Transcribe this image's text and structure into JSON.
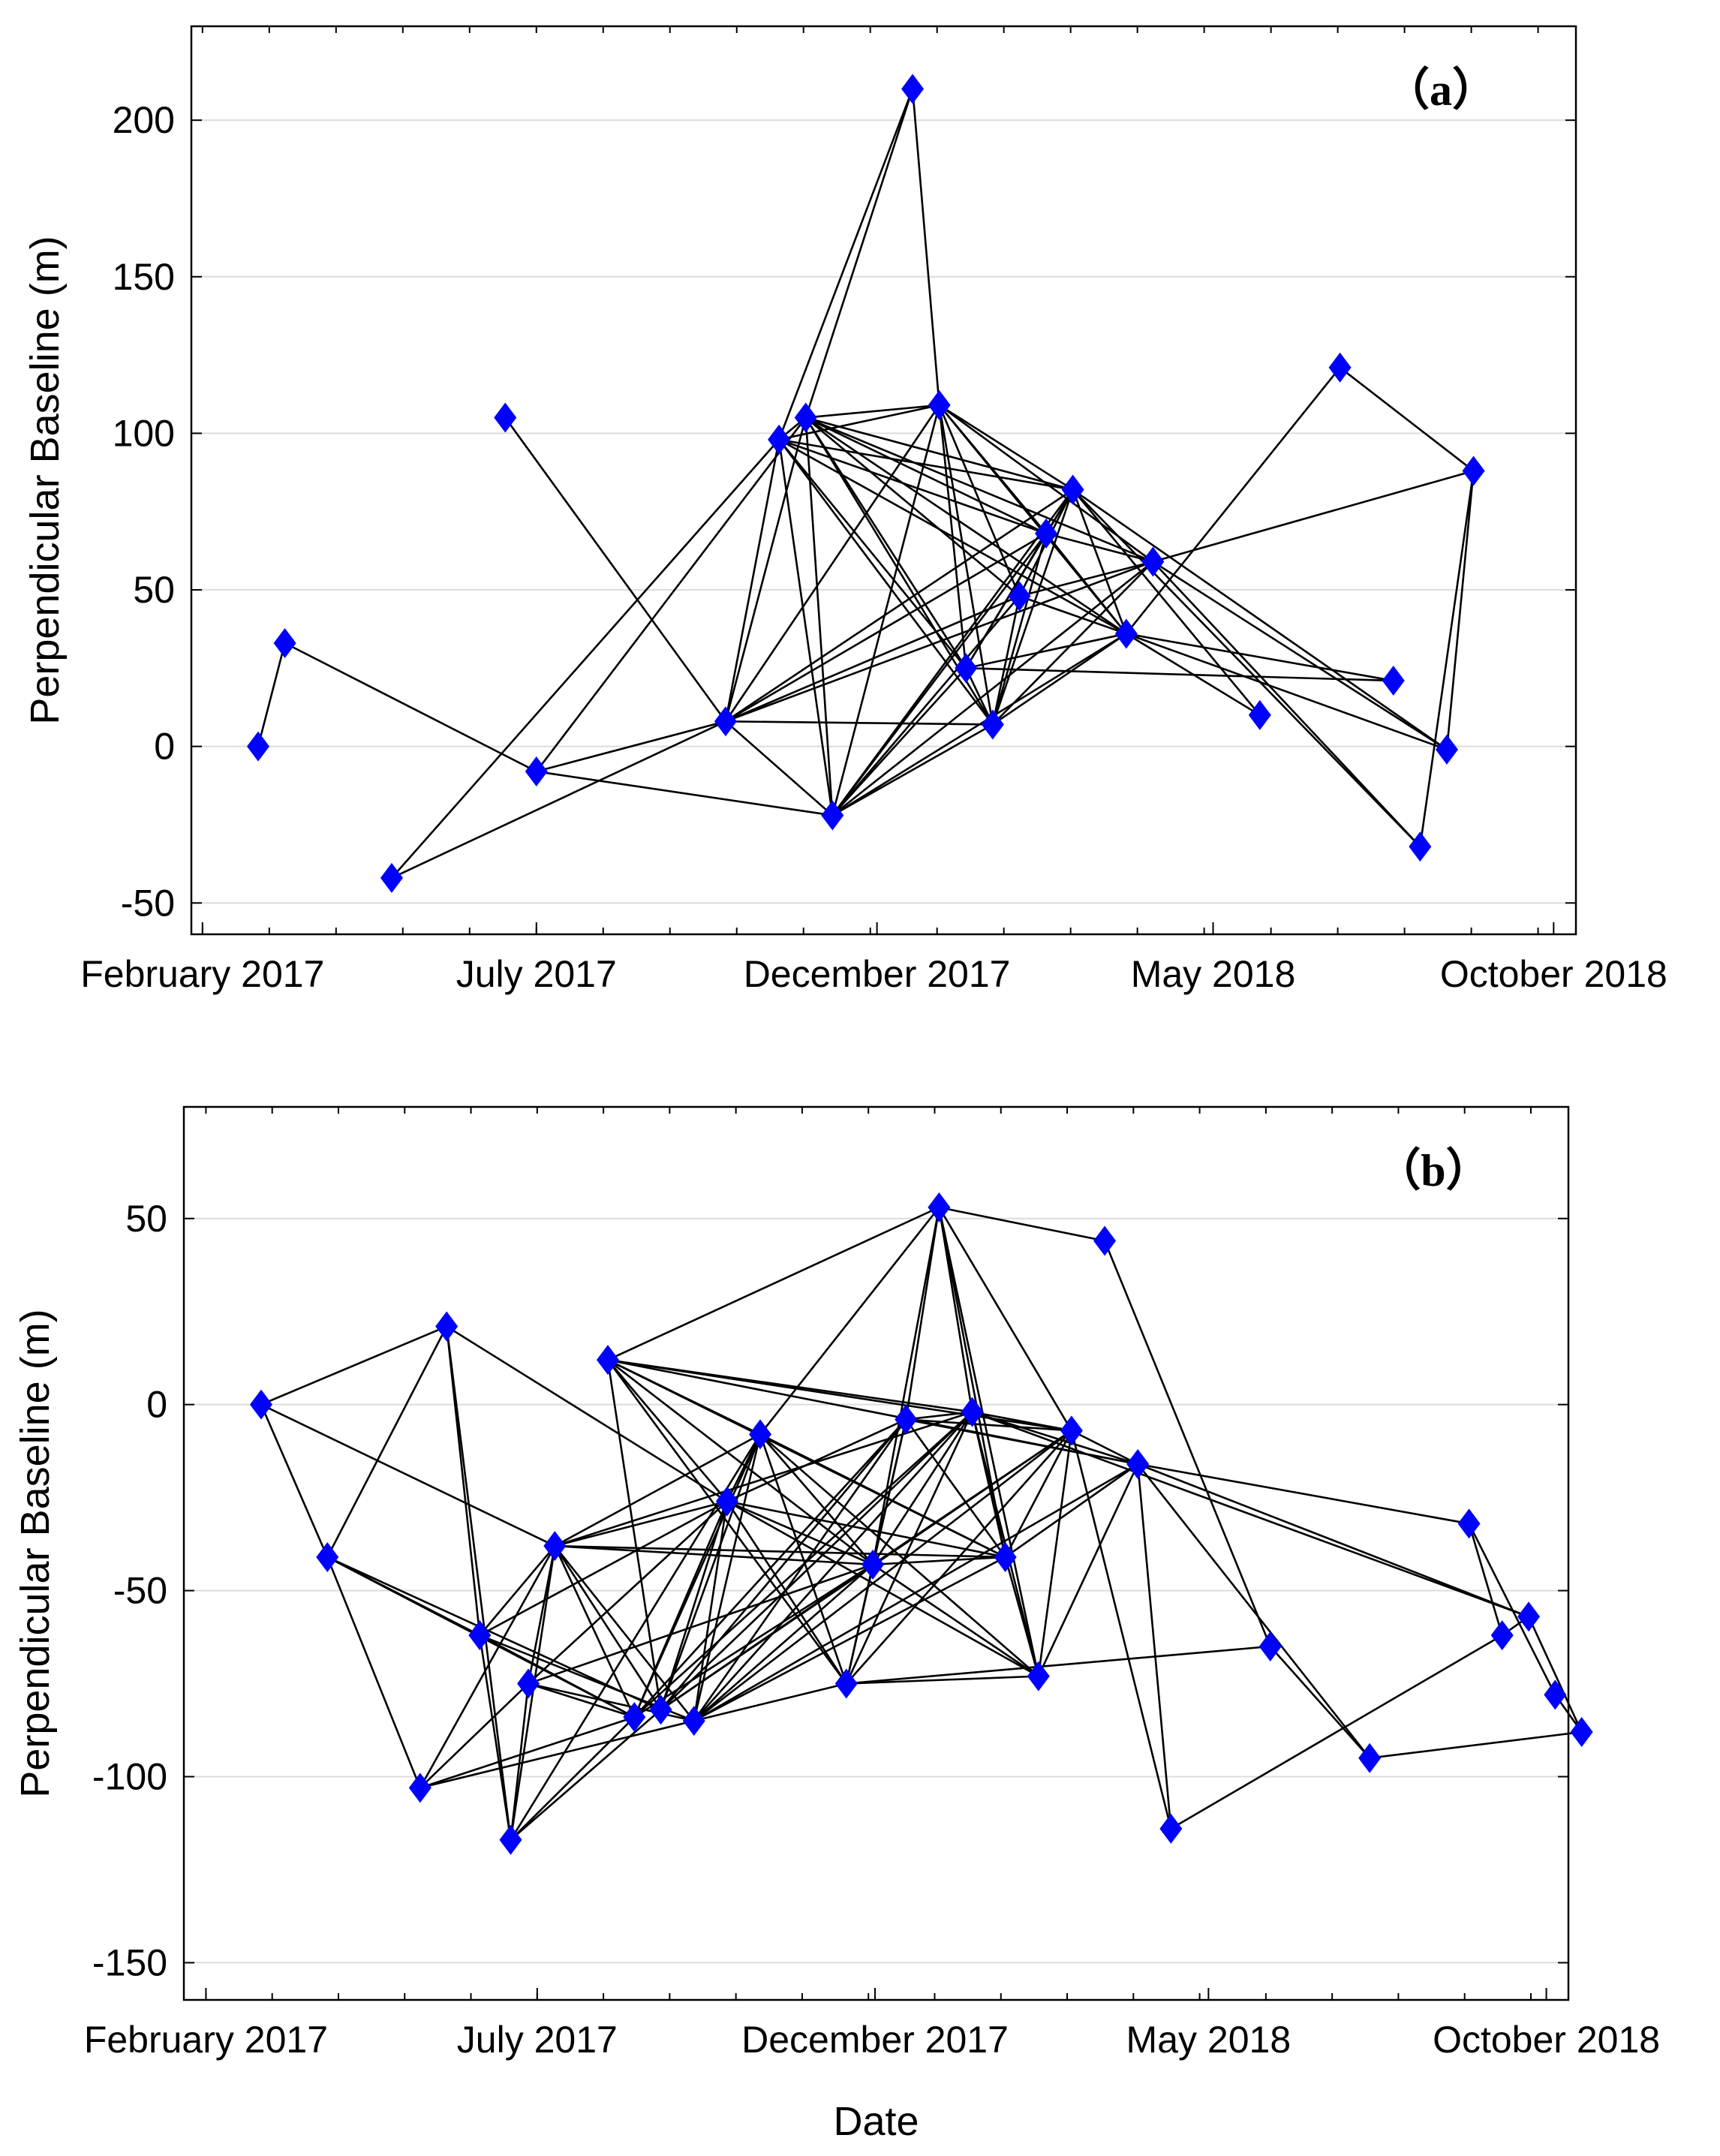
{
  "chart_data": [
    {
      "type": "scatter",
      "panel_label": "（a）",
      "ylabel": "Perpendicular Baseline (m)",
      "xlabel": "",
      "ylim": [
        -60,
        230
      ],
      "yticks": [
        -50,
        0,
        50,
        100,
        150,
        200
      ],
      "xlim_days": [
        -5,
        617
      ],
      "xticks": [
        {
          "day": 0,
          "label": "February 2017"
        },
        {
          "day": 150,
          "label": "July 2017"
        },
        {
          "day": 303,
          "label": "December 2017"
        },
        {
          "day": 454,
          "label": "May 2018"
        },
        {
          "day": 607,
          "label": "October 2018"
        }
      ],
      "grid": true,
      "marker_color": "#0000ff",
      "line_color": "#000000",
      "nodes": [
        {
          "id": "A1",
          "day": 25,
          "y": 0
        },
        {
          "id": "A2",
          "day": 37,
          "y": 33
        },
        {
          "id": "A3",
          "day": 85,
          "y": -42
        },
        {
          "id": "A4",
          "day": 136,
          "y": 105
        },
        {
          "id": "A5",
          "day": 150,
          "y": -8
        },
        {
          "id": "A6",
          "day": 235,
          "y": 8
        },
        {
          "id": "A7",
          "day": 259,
          "y": 98
        },
        {
          "id": "A8",
          "day": 271,
          "y": 105
        },
        {
          "id": "A9",
          "day": 283,
          "y": -22
        },
        {
          "id": "A10",
          "day": 319,
          "y": 210
        },
        {
          "id": "A11",
          "day": 331,
          "y": 109
        },
        {
          "id": "A12",
          "day": 343,
          "y": 25
        },
        {
          "id": "A13",
          "day": 355,
          "y": 7
        },
        {
          "id": "A14",
          "day": 367,
          "y": 48
        },
        {
          "id": "A15",
          "day": 379,
          "y": 68
        },
        {
          "id": "A16",
          "day": 391,
          "y": 82
        },
        {
          "id": "A17",
          "day": 415,
          "y": 36
        },
        {
          "id": "A18",
          "day": 427,
          "y": 59
        },
        {
          "id": "A19",
          "day": 475,
          "y": 10
        },
        {
          "id": "A20",
          "day": 511,
          "y": 121
        },
        {
          "id": "A21",
          "day": 535,
          "y": 21
        },
        {
          "id": "A22",
          "day": 559,
          "y": -1
        },
        {
          "id": "A23",
          "day": 547,
          "y": -32
        },
        {
          "id": "A24",
          "day": 571,
          "y": 88
        }
      ],
      "edges": [
        [
          "A1",
          "A2"
        ],
        [
          "A2",
          "A5"
        ],
        [
          "A4",
          "A6"
        ],
        [
          "A3",
          "A6"
        ],
        [
          "A3",
          "A7"
        ],
        [
          "A5",
          "A8"
        ],
        [
          "A5",
          "A6"
        ],
        [
          "A5",
          "A9"
        ],
        [
          "A6",
          "A7"
        ],
        [
          "A6",
          "A8"
        ],
        [
          "A6",
          "A9"
        ],
        [
          "A6",
          "A11"
        ],
        [
          "A6",
          "A13"
        ],
        [
          "A6",
          "A14"
        ],
        [
          "A6",
          "A15"
        ],
        [
          "A6",
          "A16"
        ],
        [
          "A6",
          "A18"
        ],
        [
          "A7",
          "A8"
        ],
        [
          "A7",
          "A10"
        ],
        [
          "A7",
          "A11"
        ],
        [
          "A7",
          "A12"
        ],
        [
          "A7",
          "A13"
        ],
        [
          "A7",
          "A15"
        ],
        [
          "A7",
          "A16"
        ],
        [
          "A7",
          "A17"
        ],
        [
          "A7",
          "A9"
        ],
        [
          "A8",
          "A10"
        ],
        [
          "A8",
          "A11"
        ],
        [
          "A8",
          "A12"
        ],
        [
          "A8",
          "A13"
        ],
        [
          "A8",
          "A14"
        ],
        [
          "A8",
          "A15"
        ],
        [
          "A8",
          "A16"
        ],
        [
          "A8",
          "A17"
        ],
        [
          "A8",
          "A18"
        ],
        [
          "A8",
          "A9"
        ],
        [
          "A9",
          "A11"
        ],
        [
          "A9",
          "A12"
        ],
        [
          "A9",
          "A13"
        ],
        [
          "A9",
          "A14"
        ],
        [
          "A9",
          "A15"
        ],
        [
          "A9",
          "A16"
        ],
        [
          "A9",
          "A17"
        ],
        [
          "A9",
          "A18"
        ],
        [
          "A10",
          "A11"
        ],
        [
          "A11",
          "A12"
        ],
        [
          "A11",
          "A13"
        ],
        [
          "A11",
          "A14"
        ],
        [
          "A11",
          "A15"
        ],
        [
          "A11",
          "A16"
        ],
        [
          "A11",
          "A17"
        ],
        [
          "A11",
          "A18"
        ],
        [
          "A12",
          "A13"
        ],
        [
          "A12",
          "A15"
        ],
        [
          "A12",
          "A16"
        ],
        [
          "A12",
          "A17"
        ],
        [
          "A12",
          "A21"
        ],
        [
          "A13",
          "A14"
        ],
        [
          "A13",
          "A15"
        ],
        [
          "A13",
          "A16"
        ],
        [
          "A13",
          "A17"
        ],
        [
          "A13",
          "A18"
        ],
        [
          "A14",
          "A16"
        ],
        [
          "A14",
          "A17"
        ],
        [
          "A14",
          "A18"
        ],
        [
          "A15",
          "A16"
        ],
        [
          "A15",
          "A17"
        ],
        [
          "A15",
          "A18"
        ],
        [
          "A16",
          "A17"
        ],
        [
          "A16",
          "A19"
        ],
        [
          "A16",
          "A22"
        ],
        [
          "A16",
          "A23"
        ],
        [
          "A17",
          "A19"
        ],
        [
          "A17",
          "A21"
        ],
        [
          "A17",
          "A20"
        ],
        [
          "A17",
          "A22"
        ],
        [
          "A18",
          "A22"
        ],
        [
          "A18",
          "A23"
        ],
        [
          "A18",
          "A24"
        ],
        [
          "A20",
          "A24"
        ],
        [
          "A24",
          "A23"
        ],
        [
          "A24",
          "A22"
        ]
      ]
    },
    {
      "type": "scatter",
      "panel_label": "（b）",
      "ylabel": "Perpendicular Baseline (m)",
      "xlabel": "Date",
      "ylim": [
        -160,
        80
      ],
      "yticks": [
        -150,
        -100,
        -50,
        0,
        50
      ],
      "xlim_days": [
        -10,
        617
      ],
      "xticks": [
        {
          "day": 0,
          "label": "February 2017"
        },
        {
          "day": 150,
          "label": "July 2017"
        },
        {
          "day": 303,
          "label": "December 2017"
        },
        {
          "day": 454,
          "label": "May 2018"
        },
        {
          "day": 607,
          "label": "October 2018"
        }
      ],
      "grid": true,
      "marker_color": "#0000ff",
      "line_color": "#000000",
      "nodes": [
        {
          "id": "B1",
          "day": 25,
          "y": 0
        },
        {
          "id": "B2",
          "day": 55,
          "y": -41
        },
        {
          "id": "B3",
          "day": 97,
          "y": -103
        },
        {
          "id": "B4",
          "day": 109,
          "y": 21
        },
        {
          "id": "B5",
          "day": 124,
          "y": -62
        },
        {
          "id": "B6",
          "day": 138,
          "y": -117
        },
        {
          "id": "B7",
          "day": 146,
          "y": -75
        },
        {
          "id": "B8",
          "day": 158,
          "y": -38
        },
        {
          "id": "B9",
          "day": 182,
          "y": 12
        },
        {
          "id": "B10",
          "day": 194,
          "y": -84
        },
        {
          "id": "B11",
          "day": 206,
          "y": -82
        },
        {
          "id": "B12",
          "day": 221,
          "y": -85
        },
        {
          "id": "B13",
          "day": 236,
          "y": -26
        },
        {
          "id": "B14",
          "day": 251,
          "y": -8
        },
        {
          "id": "B15",
          "day": 290,
          "y": -75
        },
        {
          "id": "B16",
          "day": 302,
          "y": -43
        },
        {
          "id": "B17",
          "day": 317,
          "y": -4
        },
        {
          "id": "B18",
          "day": 332,
          "y": 53
        },
        {
          "id": "B19",
          "day": 347,
          "y": -2
        },
        {
          "id": "B20",
          "day": 362,
          "y": -41
        },
        {
          "id": "B21",
          "day": 377,
          "y": -73
        },
        {
          "id": "B22",
          "day": 392,
          "y": -7
        },
        {
          "id": "B23",
          "day": 407,
          "y": 44
        },
        {
          "id": "B24",
          "day": 422,
          "y": -16
        },
        {
          "id": "B25",
          "day": 437,
          "y": -114
        },
        {
          "id": "B26",
          "day": 482,
          "y": -65
        },
        {
          "id": "B27",
          "day": 527,
          "y": -95
        },
        {
          "id": "B28",
          "day": 572,
          "y": -32
        },
        {
          "id": "B29",
          "day": 587,
          "y": -62
        },
        {
          "id": "B30",
          "day": 599,
          "y": -57
        },
        {
          "id": "B31",
          "day": 611,
          "y": -78
        },
        {
          "id": "B32",
          "day": 623,
          "y": -88
        }
      ],
      "edges": [
        [
          "B1",
          "B2"
        ],
        [
          "B1",
          "B4"
        ],
        [
          "B1",
          "B8"
        ],
        [
          "B2",
          "B4"
        ],
        [
          "B2",
          "B5"
        ],
        [
          "B2",
          "B3"
        ],
        [
          "B2",
          "B10"
        ],
        [
          "B2",
          "B11"
        ],
        [
          "B3",
          "B7"
        ],
        [
          "B3",
          "B8"
        ],
        [
          "B3",
          "B10"
        ],
        [
          "B3",
          "B12"
        ],
        [
          "B4",
          "B6"
        ],
        [
          "B4",
          "B5"
        ],
        [
          "B4",
          "B13"
        ],
        [
          "B5",
          "B6"
        ],
        [
          "B5",
          "B8"
        ],
        [
          "B5",
          "B10"
        ],
        [
          "B5",
          "B12"
        ],
        [
          "B5",
          "B13"
        ],
        [
          "B6",
          "B7"
        ],
        [
          "B6",
          "B8"
        ],
        [
          "B6",
          "B10"
        ],
        [
          "B6",
          "B11"
        ],
        [
          "B6",
          "B14"
        ],
        [
          "B7",
          "B8"
        ],
        [
          "B7",
          "B10"
        ],
        [
          "B7",
          "B12"
        ],
        [
          "B7",
          "B13"
        ],
        [
          "B7",
          "B16"
        ],
        [
          "B8",
          "B10"
        ],
        [
          "B8",
          "B11"
        ],
        [
          "B8",
          "B12"
        ],
        [
          "B8",
          "B13"
        ],
        [
          "B8",
          "B14"
        ],
        [
          "B8",
          "B16"
        ],
        [
          "B8",
          "B19"
        ],
        [
          "B8",
          "B20"
        ],
        [
          "B9",
          "B11"
        ],
        [
          "B9",
          "B13"
        ],
        [
          "B9",
          "B14"
        ],
        [
          "B9",
          "B15"
        ],
        [
          "B9",
          "B16"
        ],
        [
          "B9",
          "B18"
        ],
        [
          "B9",
          "B19"
        ],
        [
          "B9",
          "B20"
        ],
        [
          "B9",
          "B22"
        ],
        [
          "B9",
          "B24"
        ],
        [
          "B10",
          "B13"
        ],
        [
          "B10",
          "B14"
        ],
        [
          "B10",
          "B16"
        ],
        [
          "B10",
          "B17"
        ],
        [
          "B10",
          "B19"
        ],
        [
          "B11",
          "B13"
        ],
        [
          "B11",
          "B14"
        ],
        [
          "B11",
          "B16"
        ],
        [
          "B11",
          "B17"
        ],
        [
          "B11",
          "B19"
        ],
        [
          "B11",
          "B22"
        ],
        [
          "B12",
          "B13"
        ],
        [
          "B12",
          "B14"
        ],
        [
          "B12",
          "B15"
        ],
        [
          "B12",
          "B16"
        ],
        [
          "B12",
          "B17"
        ],
        [
          "B12",
          "B19"
        ],
        [
          "B12",
          "B20"
        ],
        [
          "B12",
          "B22"
        ],
        [
          "B12",
          "B24"
        ],
        [
          "B13",
          "B15"
        ],
        [
          "B13",
          "B16"
        ],
        [
          "B13",
          "B17"
        ],
        [
          "B13",
          "B20"
        ],
        [
          "B13",
          "B21"
        ],
        [
          "B13",
          "B14"
        ],
        [
          "B14",
          "B15"
        ],
        [
          "B14",
          "B16"
        ],
        [
          "B14",
          "B18"
        ],
        [
          "B14",
          "B20"
        ],
        [
          "B14",
          "B21"
        ],
        [
          "B15",
          "B16"
        ],
        [
          "B15",
          "B17"
        ],
        [
          "B15",
          "B19"
        ],
        [
          "B15",
          "B21"
        ],
        [
          "B15",
          "B22"
        ],
        [
          "B15",
          "B26"
        ],
        [
          "B16",
          "B17"
        ],
        [
          "B16",
          "B18"
        ],
        [
          "B16",
          "B19"
        ],
        [
          "B16",
          "B20"
        ],
        [
          "B16",
          "B21"
        ],
        [
          "B16",
          "B22"
        ],
        [
          "B17",
          "B18"
        ],
        [
          "B17",
          "B19"
        ],
        [
          "B17",
          "B20"
        ],
        [
          "B17",
          "B22"
        ],
        [
          "B17",
          "B24"
        ],
        [
          "B18",
          "B19"
        ],
        [
          "B18",
          "B20"
        ],
        [
          "B18",
          "B21"
        ],
        [
          "B18",
          "B22"
        ],
        [
          "B18",
          "B23"
        ],
        [
          "B19",
          "B20"
        ],
        [
          "B19",
          "B21"
        ],
        [
          "B19",
          "B22"
        ],
        [
          "B19",
          "B24"
        ],
        [
          "B20",
          "B21"
        ],
        [
          "B20",
          "B22"
        ],
        [
          "B20",
          "B24"
        ],
        [
          "B21",
          "B22"
        ],
        [
          "B21",
          "B24"
        ],
        [
          "B22",
          "B24"
        ],
        [
          "B22",
          "B25"
        ],
        [
          "B23",
          "B26"
        ],
        [
          "B24",
          "B25"
        ],
        [
          "B24",
          "B28"
        ],
        [
          "B24",
          "B27"
        ],
        [
          "B24",
          "B30"
        ],
        [
          "B25",
          "B29"
        ],
        [
          "B26",
          "B27"
        ],
        [
          "B27",
          "B32"
        ],
        [
          "B28",
          "B29"
        ],
        [
          "B28",
          "B31"
        ],
        [
          "B29",
          "B30"
        ],
        [
          "B30",
          "B32"
        ],
        [
          "B31",
          "B32"
        ],
        [
          "B19",
          "B30"
        ]
      ]
    }
  ]
}
